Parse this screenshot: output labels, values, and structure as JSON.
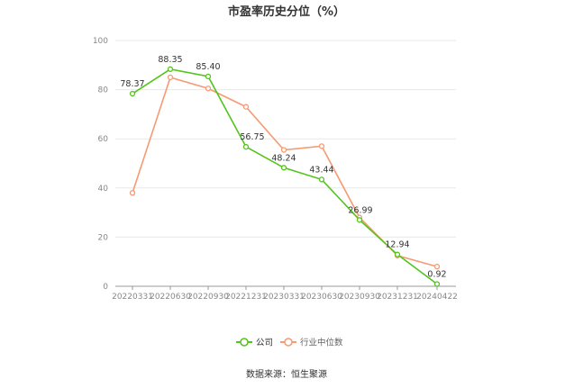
{
  "chart_data": {
    "type": "line",
    "title": "市盈率历史分位（%）",
    "categories": [
      "20220331",
      "20220630",
      "20220930",
      "20221231",
      "20230331",
      "20230630",
      "20230930",
      "20231231",
      "20240422"
    ],
    "ylim": [
      0,
      100
    ],
    "yticks": [
      0,
      20,
      40,
      60,
      80,
      100
    ],
    "series": [
      {
        "name": "公司",
        "color": "#52c41a",
        "values": [
          78.37,
          88.35,
          85.4,
          56.75,
          48.24,
          43.44,
          26.99,
          12.94,
          0.92
        ],
        "labels": [
          "78.37",
          "88.35",
          "85.40",
          "56.75",
          "48.24",
          "43.44",
          "26.99",
          "12.94",
          "0.92"
        ]
      },
      {
        "name": "行业中位数",
        "color": "#f59a73",
        "values": [
          38,
          85,
          80.5,
          73,
          55.5,
          57,
          28,
          12.5,
          8
        ]
      }
    ],
    "legend_position": "bottom",
    "grid": true
  },
  "footer": {
    "source": "数据来源：恒生聚源"
  }
}
